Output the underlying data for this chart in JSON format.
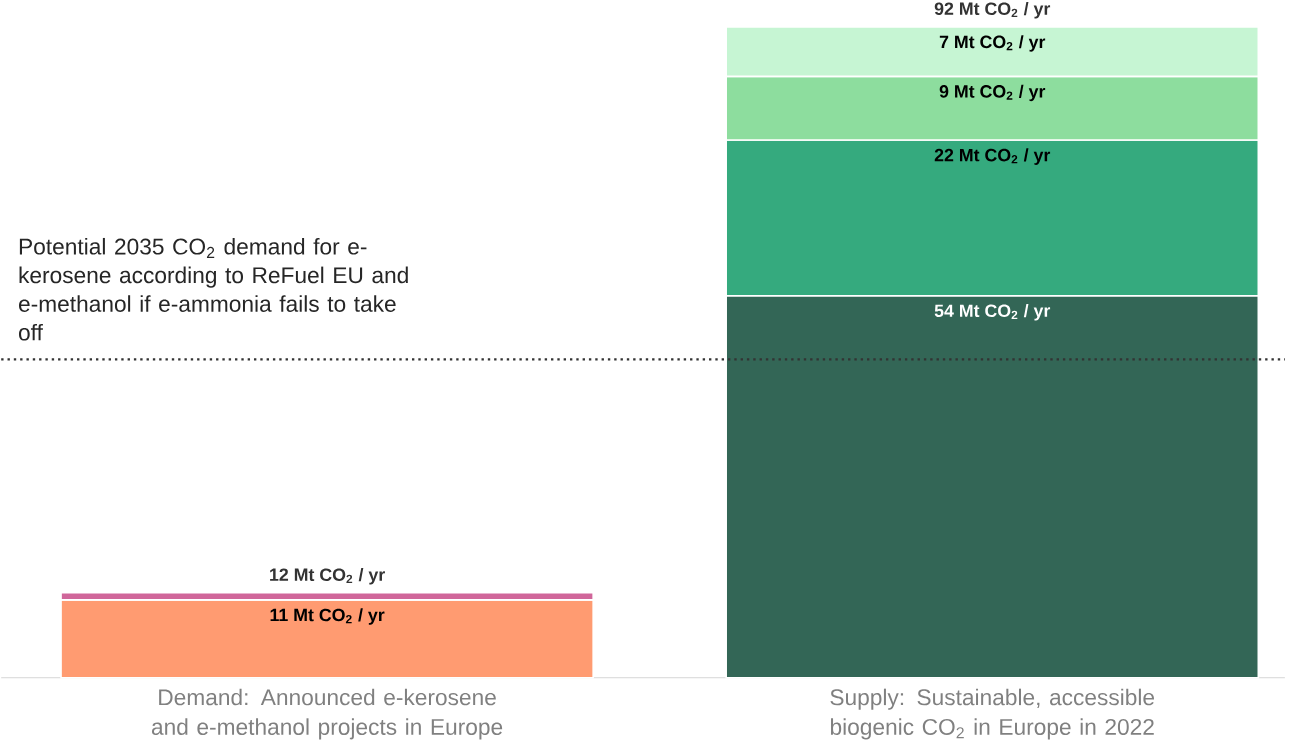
{
  "chart_data": {
    "type": "bar",
    "stacked": true,
    "categories": [
      "Demand: Announced e-kerosene and e-methanol projects in Europe",
      "Supply: Sustainable, accessible biogenic CO$_{2}$ in Europe in 2022"
    ],
    "series": [
      {
        "color": "#ff9b71",
        "values": [
          11,
          null
        ],
        "value_labels": [
          "11 Mt CO$_{2}$ / yr",
          null
        ]
      },
      {
        "color": "#d0669a",
        "values": [
          1,
          null
        ],
        "value_labels": [
          null,
          null
        ]
      },
      {
        "color": "#336656",
        "values": [
          null,
          54
        ],
        "value_labels": [
          null,
          "54 Mt CO$_{2}$ / yr"
        ]
      },
      {
        "color": "#35aa7e",
        "values": [
          null,
          22
        ],
        "value_labels": [
          null,
          "22 Mt CO$_{2}$ / yr"
        ]
      },
      {
        "color": "#8ddd9e",
        "values": [
          null,
          9
        ],
        "value_labels": [
          null,
          "9 Mt CO$_{2}$ / yr"
        ]
      },
      {
        "color": "#c6f5d3",
        "values": [
          null,
          7
        ],
        "value_labels": [
          null,
          "7 Mt CO$_{2}$ / yr"
        ]
      }
    ],
    "totals": [
      "12 Mt CO$_{2}$ / yr",
      "92 Mt CO$_{2}$ / yr"
    ],
    "ref_lines": [
      {
        "axis": "y",
        "value": 45,
        "label": "Potential 2035 CO$_{2}$ demand for e-kerosene according to ReFuel EU and e-methanol if e-ammonia fails to take off",
        "color": "#333333",
        "line_style": "dotted"
      }
    ]
  }
}
